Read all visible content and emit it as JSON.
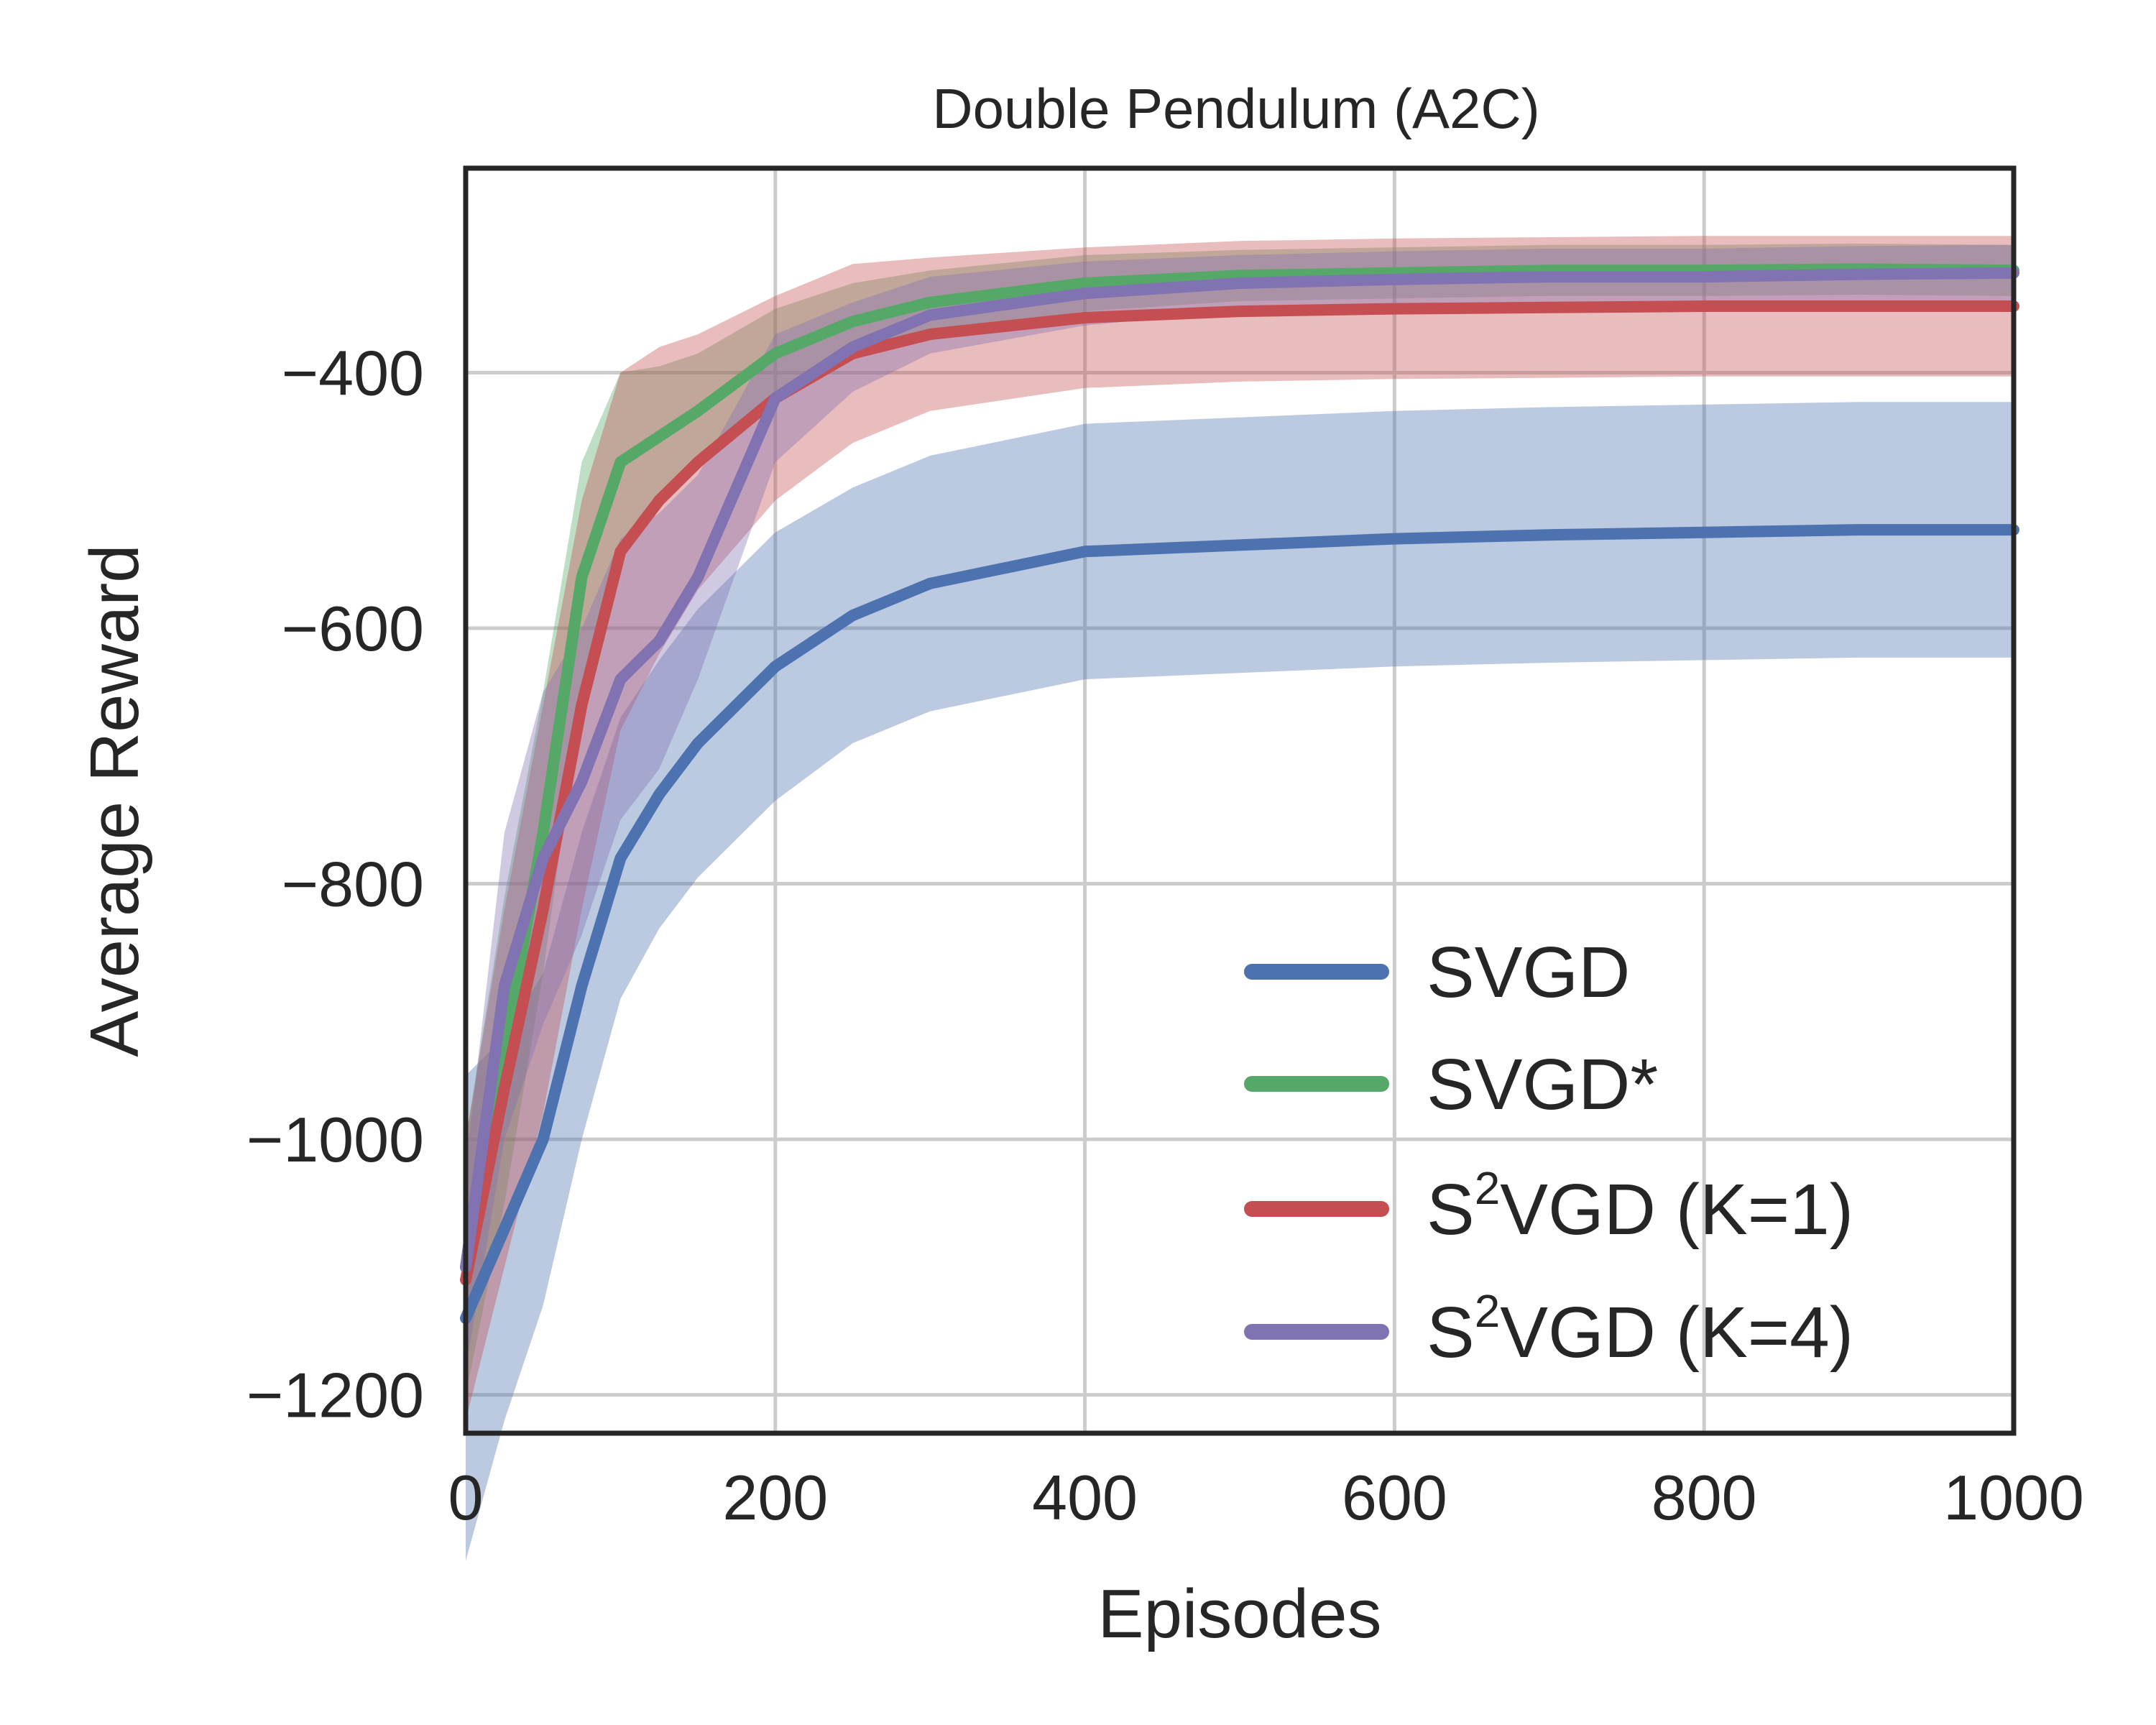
{
  "chart_data": {
    "type": "line",
    "title": "Double Pendulum (A2C)",
    "xlabel": "Episodes",
    "ylabel": "Average Reward",
    "xlim": [
      0,
      1000
    ],
    "ylim": [
      -1230,
      -240
    ],
    "xticks": [
      0,
      200,
      400,
      600,
      800,
      1000
    ],
    "xtick_labels": [
      "0",
      "200",
      "400",
      "600",
      "800",
      "1000"
    ],
    "yticks": [
      -400,
      -600,
      -800,
      -1000,
      -1200
    ],
    "ytick_labels": [
      "−400",
      "−600",
      "−800",
      "−1000",
      "−1200"
    ],
    "grid": true,
    "legend_position": "lower-right",
    "x": [
      0,
      25,
      50,
      75,
      100,
      125,
      150,
      200,
      250,
      300,
      400,
      500,
      600,
      700,
      800,
      900,
      1000
    ],
    "series": [
      {
        "name": "SVGD",
        "color": "#4c72b0",
        "values": [
          -1140,
          -1070,
          -1000,
          -880,
          -780,
          -730,
          -690,
          -630,
          -590,
          -565,
          -540,
          -535,
          -530,
          -527,
          -525,
          -523,
          -523
        ],
        "band": [
          190,
          150,
          130,
          120,
          110,
          105,
          105,
          105,
          100,
          100,
          100,
          100,
          100,
          100,
          100,
          100,
          100
        ]
      },
      {
        "name": "SVGD*",
        "color": "#55a868",
        "values": [
          -1100,
          -930,
          -760,
          -560,
          -470,
          -450,
          -430,
          -385,
          -360,
          -345,
          -330,
          -324,
          -322,
          -320,
          -320,
          -319,
          -320
        ],
        "band": [
          100,
          120,
          110,
          90,
          70,
          55,
          45,
          35,
          30,
          25,
          22,
          20,
          20,
          20,
          20,
          20,
          20
        ]
      },
      {
        "name": "S2VGD (K=1)",
        "color": "#c44e52",
        "values": [
          -1110,
          -960,
          -820,
          -660,
          -540,
          -500,
          -470,
          -420,
          -385,
          -370,
          -357,
          -352,
          -350,
          -349,
          -348,
          -348,
          -348
        ],
        "band": [
          110,
          140,
          160,
          160,
          140,
          120,
          100,
          80,
          70,
          60,
          55,
          55,
          55,
          55,
          55,
          55,
          55
        ]
      },
      {
        "name": "S2VGD (K=4)",
        "color": "#8172b2",
        "values": [
          -1100,
          -880,
          -780,
          -720,
          -640,
          -610,
          -560,
          -420,
          -380,
          -355,
          -338,
          -330,
          -327,
          -325,
          -325,
          -323,
          -322
        ],
        "band": [
          80,
          120,
          130,
          120,
          110,
          100,
          80,
          50,
          35,
          30,
          25,
          22,
          22,
          22,
          22,
          22,
          22
        ]
      }
    ],
    "legend": [
      {
        "base": "S",
        "sup": "",
        "rest": "VGD"
      },
      {
        "base": "S",
        "sup": "",
        "rest": "VGD*"
      },
      {
        "base": "S",
        "sup": "2",
        "rest": "VGD (K=1)"
      },
      {
        "base": "S",
        "sup": "2",
        "rest": "VGD (K=4)"
      }
    ]
  }
}
